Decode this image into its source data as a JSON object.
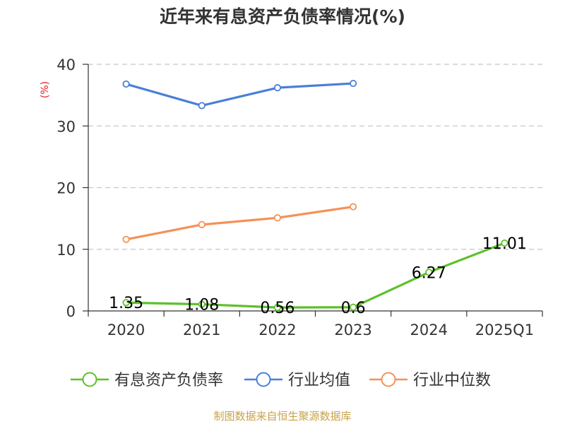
{
  "chart_data": {
    "type": "line",
    "title": "近年来有息资产负债率情况(%)",
    "ylabel": "(%)",
    "categories": [
      "2020",
      "2021",
      "2022",
      "2023",
      "2024",
      "2025Q1"
    ],
    "ylim": [
      0,
      40
    ],
    "yticks": [
      0,
      10,
      20,
      30,
      40
    ],
    "grid": true,
    "legend_position": "bottom",
    "series": [
      {
        "name": "有息资产负债率",
        "color": "#5cc12a",
        "values": [
          1.35,
          1.08,
          0.56,
          0.6,
          6.27,
          11.01
        ],
        "show_labels": true
      },
      {
        "name": "行业均值",
        "color": "#4a7fd8",
        "values": [
          36.8,
          33.3,
          36.2,
          36.9,
          null,
          null
        ],
        "show_labels": false
      },
      {
        "name": "行业中位数",
        "color": "#f59158",
        "values": [
          11.6,
          14.0,
          15.1,
          16.9,
          null,
          null
        ],
        "show_labels": false
      }
    ]
  },
  "source": "制图数据来自恒生聚源数据库"
}
